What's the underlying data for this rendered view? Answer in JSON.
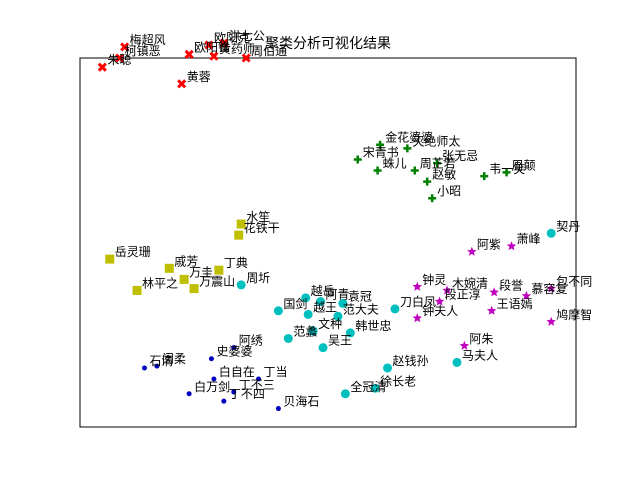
{
  "chart_data": {
    "type": "scatter",
    "title": "聚类分析可视化结果",
    "xlim": [
      0,
      100
    ],
    "ylim": [
      0,
      100
    ],
    "grid": false,
    "series": [
      {
        "color": "#ff0000",
        "marker": "x",
        "points": [
          {
            "label": "梅超风",
            "x": 9.0,
            "y": 103.0
          },
          {
            "label": "柯镇恶",
            "x": 8.0,
            "y": 100.0
          },
          {
            "label": "朱聪",
            "x": 4.5,
            "y": 97.5
          },
          {
            "label": "欧阳锋",
            "x": 22.0,
            "y": 101.0
          },
          {
            "label": "洪七公",
            "x": 29.0,
            "y": 104.0
          },
          {
            "label": "欧阳克",
            "x": 26.0,
            "y": 103.5
          },
          {
            "label": "黄药师",
            "x": 27.0,
            "y": 100.5
          },
          {
            "label": "周伯通",
            "x": 33.5,
            "y": 100.0
          },
          {
            "label": "黄蓉",
            "x": 20.5,
            "y": 93.0
          }
        ]
      },
      {
        "color": "#008000",
        "marker": "plus",
        "points": [
          {
            "label": "宋青书",
            "x": 56.0,
            "y": 72.5
          },
          {
            "label": "金花婆婆",
            "x": 60.5,
            "y": 76.5
          },
          {
            "label": "灭绝师太",
            "x": 66.0,
            "y": 75.5
          },
          {
            "label": "蛛儿",
            "x": 60.0,
            "y": 69.5
          },
          {
            "label": "周芷若",
            "x": 67.5,
            "y": 69.5
          },
          {
            "label": "张无忌",
            "x": 72.0,
            "y": 71.5
          },
          {
            "label": "赵敏",
            "x": 70.0,
            "y": 66.5
          },
          {
            "label": "韦一笑",
            "x": 81.5,
            "y": 68.0
          },
          {
            "label": "周颠",
            "x": 86.0,
            "y": 69.0
          },
          {
            "label": "小昭",
            "x": 71.0,
            "y": 62.0
          }
        ]
      },
      {
        "color": "#bfbf00",
        "marker": "square",
        "points": [
          {
            "label": "水笙",
            "x": 32.5,
            "y": 55.0
          },
          {
            "label": "花铁干",
            "x": 32.0,
            "y": 52.0
          },
          {
            "label": "岳灵珊",
            "x": 6.0,
            "y": 45.5
          },
          {
            "label": "戚芳",
            "x": 18.0,
            "y": 43.0
          },
          {
            "label": "丁典",
            "x": 28.0,
            "y": 42.5
          },
          {
            "label": "万圭",
            "x": 21.0,
            "y": 40.0
          },
          {
            "label": "万震山",
            "x": 23.0,
            "y": 37.5
          },
          {
            "label": "林平之",
            "x": 11.5,
            "y": 37.0
          }
        ]
      },
      {
        "color": "#00bfbf",
        "marker": "circle",
        "points": [
          {
            "label": "周圻",
            "x": 32.5,
            "y": 38.5
          },
          {
            "label": "越岳",
            "x": 45.5,
            "y": 35.0
          },
          {
            "label": "阿青",
            "x": 48.5,
            "y": 34.0
          },
          {
            "label": "袁冠",
            "x": 53.0,
            "y": 33.5
          },
          {
            "label": "国剑",
            "x": 40.0,
            "y": 31.5
          },
          {
            "label": "越王",
            "x": 46.0,
            "y": 30.5
          },
          {
            "label": "范大夫",
            "x": 52.0,
            "y": 30.0
          },
          {
            "label": "文种",
            "x": 47.0,
            "y": 26.0
          },
          {
            "label": "韩世忠",
            "x": 54.5,
            "y": 25.5
          },
          {
            "label": "范蠡",
            "x": 42.0,
            "y": 24.0
          },
          {
            "label": "吴王",
            "x": 49.0,
            "y": 21.5
          },
          {
            "label": "刀白凤",
            "x": 63.5,
            "y": 32.0
          },
          {
            "label": "赵钱孙",
            "x": 62.0,
            "y": 16.0
          },
          {
            "label": "马夫人",
            "x": 76.0,
            "y": 17.5
          },
          {
            "label": "全冠清",
            "x": 53.5,
            "y": 9.0
          },
          {
            "label": "徐长老",
            "x": 59.5,
            "y": 10.5
          },
          {
            "label": "契丹",
            "x": 95.0,
            "y": 52.5
          }
        ]
      },
      {
        "color": "#bf00bf",
        "marker": "star",
        "points": [
          {
            "label": "阿紫",
            "x": 79.0,
            "y": 47.5
          },
          {
            "label": "萧峰",
            "x": 87.0,
            "y": 49.0
          },
          {
            "label": "钟灵",
            "x": 68.0,
            "y": 38.0
          },
          {
            "label": "木婉清",
            "x": 74.0,
            "y": 37.0
          },
          {
            "label": "段誉",
            "x": 83.5,
            "y": 36.5
          },
          {
            "label": "慕容复",
            "x": 90.0,
            "y": 35.5
          },
          {
            "label": "包不同",
            "x": 95.0,
            "y": 37.5
          },
          {
            "label": "段正淳",
            "x": 72.5,
            "y": 34.0
          },
          {
            "label": "王语嫣",
            "x": 83.0,
            "y": 31.5
          },
          {
            "label": "钟夫人",
            "x": 68.0,
            "y": 29.5
          },
          {
            "label": "鸠摩智",
            "x": 95.0,
            "y": 28.5
          },
          {
            "label": "阿朱",
            "x": 77.5,
            "y": 22.0
          }
        ]
      },
      {
        "color": "#0000bf",
        "marker": "dot",
        "points": [
          {
            "label": "阿绣",
            "x": 31.0,
            "y": 21.5
          },
          {
            "label": "史婆婆",
            "x": 26.5,
            "y": 18.5
          },
          {
            "label": "闵柔",
            "x": 15.5,
            "y": 16.5
          },
          {
            "label": "石清",
            "x": 13.0,
            "y": 16.0
          },
          {
            "label": "丁当",
            "x": 36.0,
            "y": 13.0
          },
          {
            "label": "白自在",
            "x": 27.0,
            "y": 13.0
          },
          {
            "label": "白万剑",
            "x": 22.0,
            "y": 9.0
          },
          {
            "label": "丁不三",
            "x": 31.0,
            "y": 9.5
          },
          {
            "label": "丁不四",
            "x": 29.0,
            "y": 7.0
          },
          {
            "label": "贝海石",
            "x": 40.0,
            "y": 5.0
          }
        ]
      }
    ]
  }
}
